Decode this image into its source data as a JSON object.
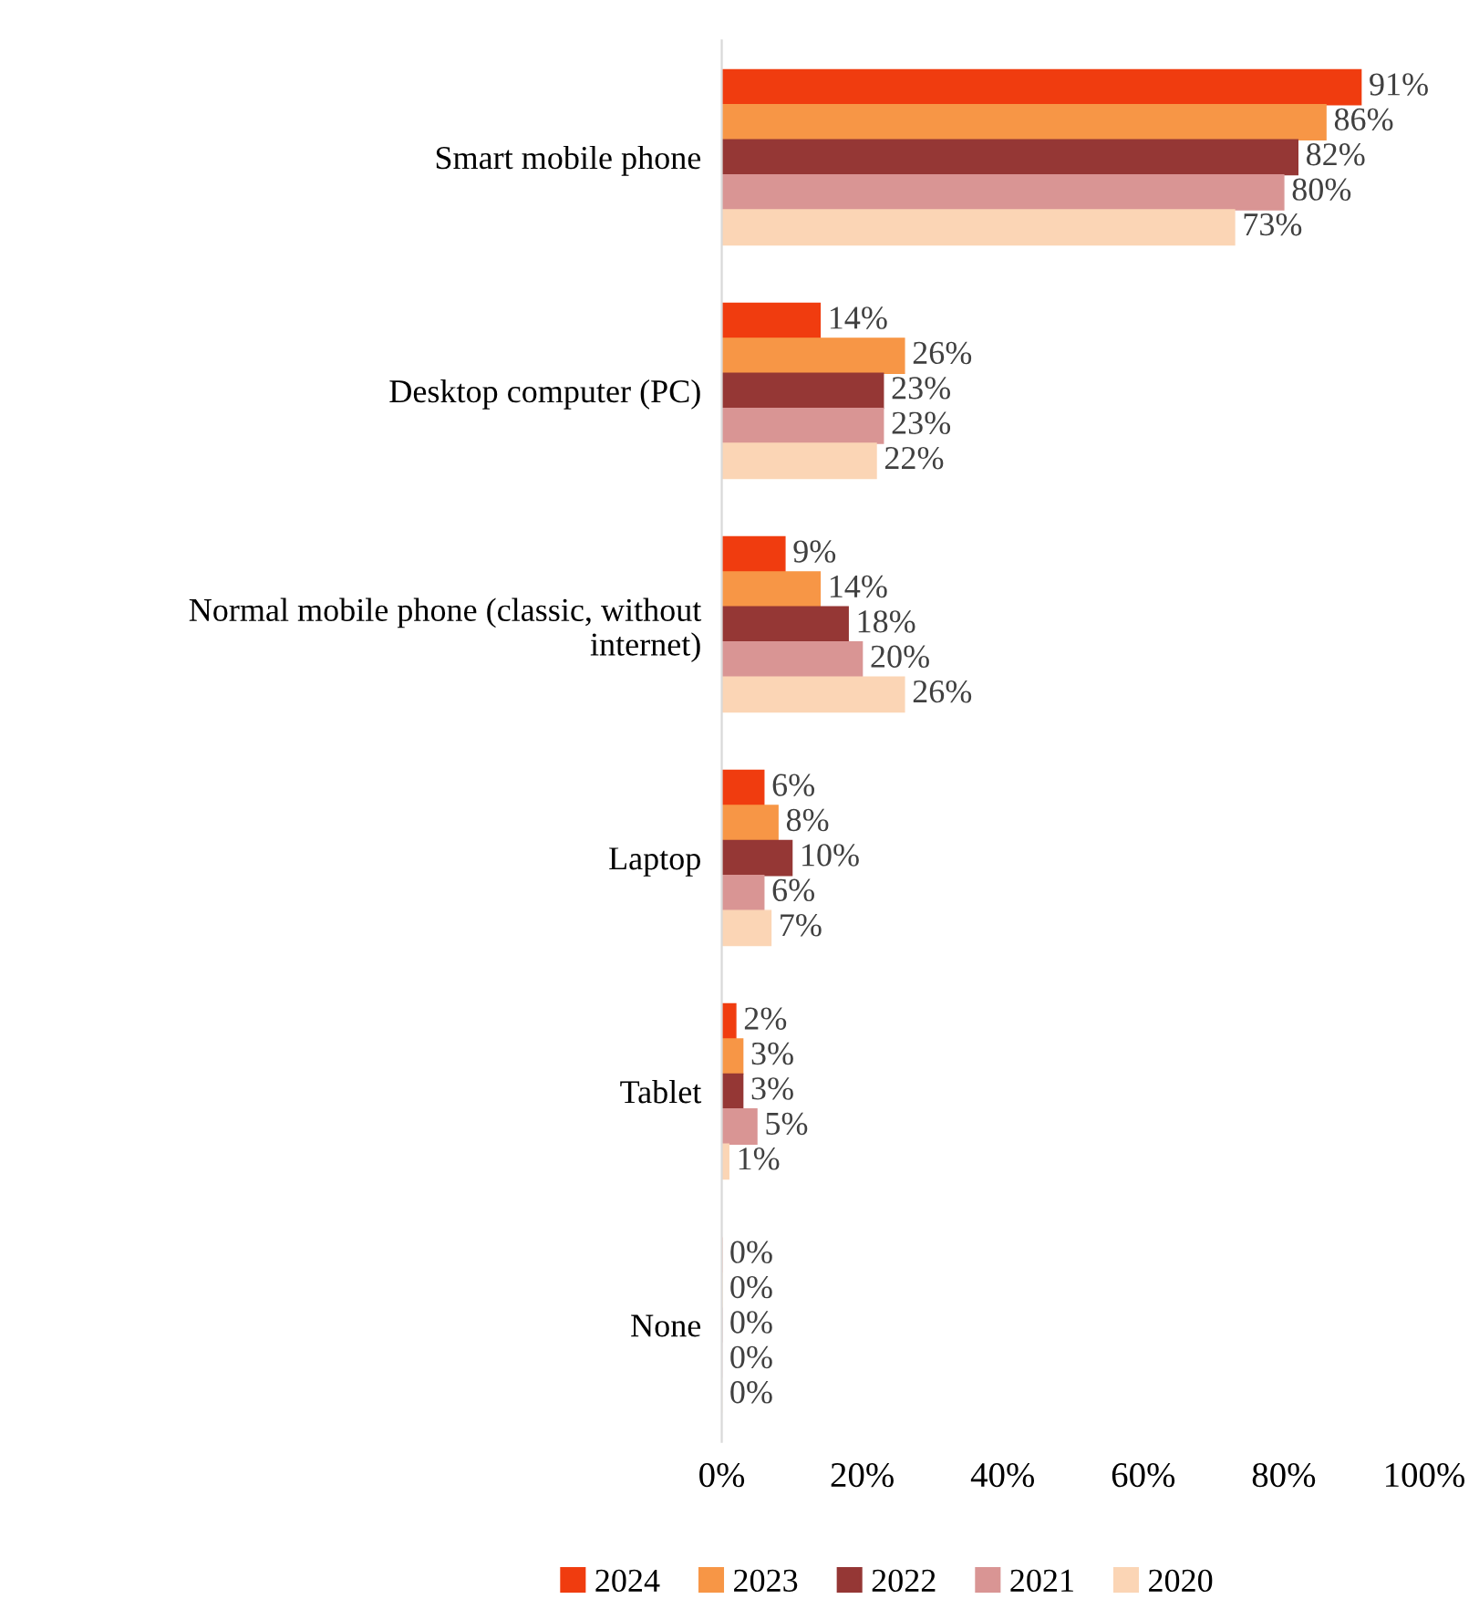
{
  "chart_data": {
    "type": "bar",
    "orientation": "horizontal",
    "categories": [
      "Smart mobile phone",
      "Desktop computer (PC)",
      "Normal mobile phone (classic, without\ninternet)",
      "Laptop",
      "Tablet",
      "None"
    ],
    "series": [
      {
        "name": "2024",
        "color": "#f03c0f",
        "values": [
          91,
          14,
          9,
          6,
          2,
          0
        ],
        "value_labels": [
          "91%",
          "14%",
          "9%",
          "6%",
          "2%",
          "0%"
        ]
      },
      {
        "name": "2023",
        "color": "#f79646",
        "values": [
          86,
          26,
          14,
          8,
          3,
          0
        ],
        "value_labels": [
          "86%",
          "26%",
          "14%",
          "8%",
          "3%",
          "0%"
        ]
      },
      {
        "name": "2022",
        "color": "#953735",
        "values": [
          82,
          23,
          18,
          10,
          3,
          0
        ],
        "value_labels": [
          "82%",
          "23%",
          "18%",
          "10%",
          "3%",
          "0%"
        ]
      },
      {
        "name": "2021",
        "color": "#d99594",
        "values": [
          80,
          23,
          20,
          6,
          5,
          0
        ],
        "value_labels": [
          "80%",
          "23%",
          "20%",
          "6%",
          "5%",
          "0%"
        ]
      },
      {
        "name": "2020",
        "color": "#fbd5b5",
        "values": [
          73,
          22,
          26,
          7,
          1,
          0
        ],
        "value_labels": [
          "73%",
          "22%",
          "26%",
          "7%",
          "1%",
          "0%"
        ]
      }
    ],
    "xlim": [
      0,
      100
    ],
    "xticks": [
      {
        "value": 0,
        "label": "0%"
      },
      {
        "value": 20,
        "label": "20%"
      },
      {
        "value": 40,
        "label": "40%"
      },
      {
        "value": 60,
        "label": "60%"
      },
      {
        "value": 80,
        "label": "80%"
      },
      {
        "value": 100,
        "label": "100%"
      }
    ],
    "grid": false,
    "legend": "bottom"
  }
}
